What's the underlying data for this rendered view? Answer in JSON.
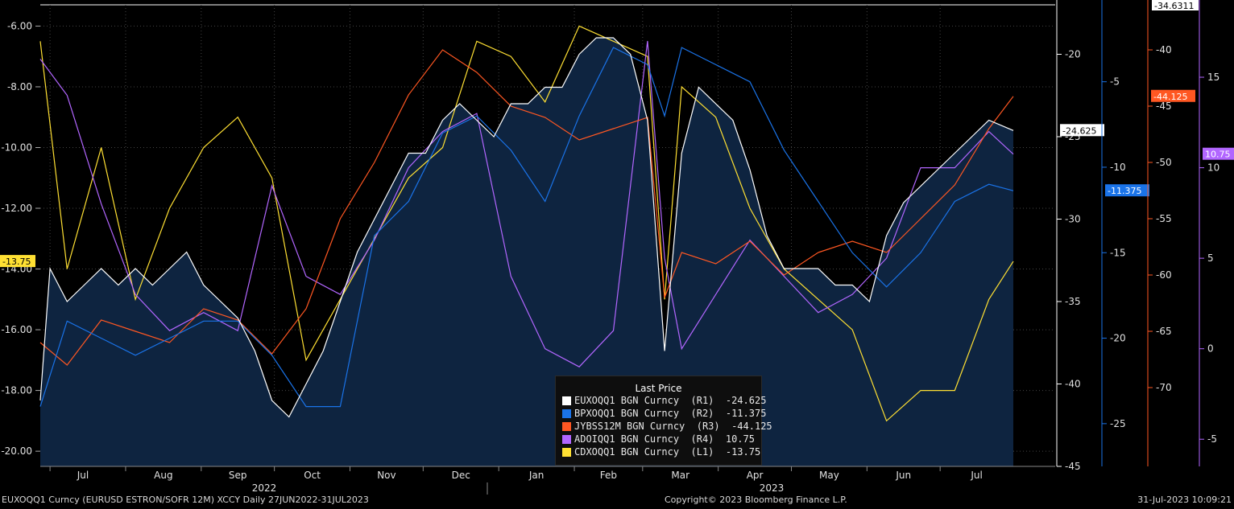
{
  "footer": {
    "left": "EUXOQQ1 Curncy (EURUSD  ESTRON/SOFR 12M) XCCY  Daily 27JUN2022-31JUL2023",
    "middle": "Copyright© 2023 Bloomberg Finance L.P.",
    "right": "31-Jul-2023 10:09:21"
  },
  "legend": {
    "title": "Last Price",
    "entries": [
      {
        "text": "EUXOQQ1 BGN Curncy  (R1)  -24.625",
        "color": "#ffffff"
      },
      {
        "text": "BPXOQQ1 BGN Curncy  (R2)  -11.375",
        "color": "#1a73e8"
      },
      {
        "text": "JYBSS12M BGN Curncy  (R3)  -44.125",
        "color": "#ff5722"
      },
      {
        "text": "ADOIQQ1 BGN Curncy  (R4)  10.75",
        "color": "#b266ff"
      },
      {
        "text": "CDXOQQ1 BGN Curncy  (L1)  -13.75",
        "color": "#ffe033"
      }
    ]
  },
  "chart_data": {
    "type": "line",
    "x_months": [
      "Jul",
      "Aug",
      "Sep",
      "Oct",
      "Nov",
      "Dec",
      "Jan",
      "Feb",
      "Mar",
      "Apr",
      "May",
      "Jun",
      "Jul"
    ],
    "x_years": [
      "2022",
      "2023"
    ],
    "grid": true,
    "legend_position": "bottom-center",
    "axes": {
      "L1": {
        "ticks": [
          "-6.00",
          "-8.00",
          "-10.00",
          "-12.00",
          "-14.00",
          "-16.00",
          "-18.00",
          "-20.00"
        ],
        "range": [
          -20.5,
          -5.3
        ],
        "color": "#ffe033",
        "last_label": "-13.75"
      },
      "R1": {
        "ticks": [
          "-20",
          "-25",
          "-30",
          "-35",
          "-40",
          "-45"
        ],
        "range": [
          -45,
          -17
        ],
        "color": "#ffffff",
        "last_label": "-24.625"
      },
      "R2": {
        "ticks": [
          "-5",
          "-10",
          "-15",
          "-20",
          "-25"
        ],
        "range": [
          -27.5,
          -0.5
        ],
        "color": "#1a73e8",
        "last_label": "-11.375"
      },
      "R3": {
        "ticks": [
          "-40",
          "-45",
          "-50",
          "-55",
          "-60",
          "-65",
          "-70"
        ],
        "range": [
          -77,
          -36
        ],
        "color": "#ff5722",
        "last_label": "-44.125",
        "top_label": "-34.6311"
      },
      "R4": {
        "ticks": [
          "15",
          "10",
          "5",
          "0",
          "-5"
        ],
        "range": [
          -6.5,
          19
        ],
        "color": "#b266ff",
        "last_label": "10.75"
      }
    },
    "series": [
      {
        "name": "EUXOQQ1 BGN Curncy",
        "axis": "R1",
        "color": "#ffffff",
        "fill": true,
        "x": [
          "2022-06-27",
          "2022-07-01",
          "2022-07-08",
          "2022-07-15",
          "2022-07-22",
          "2022-07-29",
          "2022-08-05",
          "2022-08-12",
          "2022-08-19",
          "2022-08-26",
          "2022-09-02",
          "2022-09-09",
          "2022-09-16",
          "2022-09-23",
          "2022-09-30",
          "2022-10-07",
          "2022-10-14",
          "2022-10-21",
          "2022-10-28",
          "2022-11-04",
          "2022-11-11",
          "2022-11-18",
          "2022-11-25",
          "2022-12-02",
          "2022-12-09",
          "2022-12-16",
          "2022-12-23",
          "2022-12-30",
          "2023-01-06",
          "2023-01-13",
          "2023-01-20",
          "2023-01-27",
          "2023-02-03",
          "2023-02-10",
          "2023-02-17",
          "2023-02-24",
          "2023-03-03",
          "2023-03-10",
          "2023-03-17",
          "2023-03-24",
          "2023-03-31",
          "2023-04-07",
          "2023-04-14",
          "2023-04-21",
          "2023-04-28",
          "2023-05-05",
          "2023-05-12",
          "2023-05-19",
          "2023-05-26",
          "2023-06-02",
          "2023-06-09",
          "2023-06-16",
          "2023-06-23",
          "2023-06-30",
          "2023-07-07",
          "2023-07-14",
          "2023-07-21",
          "2023-07-31"
        ],
        "y": [
          -41,
          -33,
          -35,
          -34,
          -33,
          -34,
          -33,
          -34,
          -33,
          -32,
          -34,
          -35,
          -36,
          -38,
          -41,
          -42,
          -40,
          -38,
          -35,
          -32,
          -30,
          -28,
          -26,
          -26,
          -24,
          -23,
          -24,
          -25,
          -23,
          -23,
          -22,
          -22,
          -20,
          -19,
          -19,
          -20,
          -24,
          -38,
          -26,
          -22,
          -23,
          -24,
          -27,
          -31,
          -33,
          -33,
          -33,
          -34,
          -34,
          -35,
          -31,
          -29,
          -28,
          -27,
          -26,
          -25,
          -24,
          -24.625
        ]
      },
      {
        "name": "BPXOQQ1 BGN Curncy",
        "axis": "R2",
        "color": "#1a73e8",
        "fill": false,
        "x": [
          "2022-06-27",
          "2022-07-08",
          "2022-07-22",
          "2022-08-05",
          "2022-08-19",
          "2022-09-02",
          "2022-09-16",
          "2022-09-30",
          "2022-10-14",
          "2022-10-28",
          "2022-11-11",
          "2022-11-25",
          "2022-12-09",
          "2022-12-23",
          "2023-01-06",
          "2023-01-20",
          "2023-02-03",
          "2023-02-17",
          "2023-03-03",
          "2023-03-10",
          "2023-03-17",
          "2023-03-31",
          "2023-04-14",
          "2023-04-28",
          "2023-05-12",
          "2023-05-26",
          "2023-06-09",
          "2023-06-23",
          "2023-07-07",
          "2023-07-21",
          "2023-07-31"
        ],
        "y": [
          -24,
          -19,
          -20,
          -21,
          -20,
          -19,
          -19,
          -21,
          -24,
          -24,
          -14,
          -12,
          -8,
          -7,
          -9,
          -12,
          -7,
          -3,
          -4,
          -7,
          -3,
          -4,
          -5,
          -9,
          -12,
          -15,
          -17,
          -15,
          -12,
          -11,
          -11.375
        ]
      },
      {
        "name": "JYBSS12M BGN Curncy",
        "axis": "R3",
        "color": "#ff5722",
        "fill": false,
        "x": [
          "2022-06-27",
          "2022-07-08",
          "2022-07-22",
          "2022-08-05",
          "2022-08-19",
          "2022-09-02",
          "2022-09-16",
          "2022-09-30",
          "2022-10-14",
          "2022-10-28",
          "2022-11-11",
          "2022-11-25",
          "2022-12-09",
          "2022-12-23",
          "2023-01-06",
          "2023-01-20",
          "2023-02-03",
          "2023-02-17",
          "2023-03-03",
          "2023-03-10",
          "2023-03-17",
          "2023-03-31",
          "2023-04-14",
          "2023-04-28",
          "2023-05-12",
          "2023-05-26",
          "2023-06-09",
          "2023-06-23",
          "2023-07-07",
          "2023-07-21",
          "2023-07-31"
        ],
        "y": [
          -66,
          -68,
          -64,
          -65,
          -66,
          -63,
          -64,
          -67,
          -63,
          -55,
          -50,
          -44,
          -40,
          -42,
          -45,
          -46,
          -48,
          -47,
          -46,
          -62,
          -58,
          -59,
          -57,
          -60,
          -58,
          -57,
          -58,
          -55,
          -52,
          -47,
          -44.125
        ]
      },
      {
        "name": "ADOIQQ1 BGN Curncy",
        "axis": "R4",
        "color": "#b266ff",
        "fill": false,
        "x": [
          "2022-06-27",
          "2022-07-08",
          "2022-07-22",
          "2022-08-05",
          "2022-08-19",
          "2022-09-02",
          "2022-09-16",
          "2022-09-30",
          "2022-10-14",
          "2022-10-28",
          "2022-11-11",
          "2022-11-25",
          "2022-12-09",
          "2022-12-23",
          "2023-01-06",
          "2023-01-20",
          "2023-02-03",
          "2023-02-17",
          "2023-03-03",
          "2023-03-10",
          "2023-03-17",
          "2023-03-31",
          "2023-04-14",
          "2023-04-28",
          "2023-05-12",
          "2023-05-26",
          "2023-06-09",
          "2023-06-23",
          "2023-07-07",
          "2023-07-21",
          "2023-07-31"
        ],
        "y": [
          16,
          14,
          8,
          3,
          1,
          2,
          1,
          9,
          4,
          3,
          6,
          10,
          12,
          13,
          4,
          0,
          -1,
          1,
          17,
          5,
          0,
          3,
          6,
          4,
          2,
          3,
          5,
          10,
          10,
          12,
          10.75
        ]
      },
      {
        "name": "CDXOQQ1 BGN Curncy",
        "axis": "L1",
        "color": "#ffe033",
        "fill": false,
        "x": [
          "2022-06-27",
          "2022-07-08",
          "2022-07-22",
          "2022-08-05",
          "2022-08-19",
          "2022-09-02",
          "2022-09-16",
          "2022-09-30",
          "2022-10-14",
          "2022-10-28",
          "2022-11-11",
          "2022-11-25",
          "2022-12-09",
          "2022-12-23",
          "2023-01-06",
          "2023-01-20",
          "2023-02-03",
          "2023-02-17",
          "2023-03-03",
          "2023-03-10",
          "2023-03-17",
          "2023-03-31",
          "2023-04-14",
          "2023-04-28",
          "2023-05-12",
          "2023-05-26",
          "2023-06-09",
          "2023-06-23",
          "2023-07-07",
          "2023-07-21",
          "2023-07-31"
        ],
        "y": [
          -6.5,
          -14,
          -10,
          -15,
          -12,
          -10,
          -9,
          -11,
          -17,
          -15,
          -13,
          -11,
          -10,
          -6.5,
          -7,
          -8.5,
          -6,
          -6.5,
          -7,
          -15,
          -8,
          -9,
          -12,
          -14,
          -15,
          -16,
          -19,
          -18,
          -18,
          -15,
          -13.75
        ]
      }
    ]
  }
}
